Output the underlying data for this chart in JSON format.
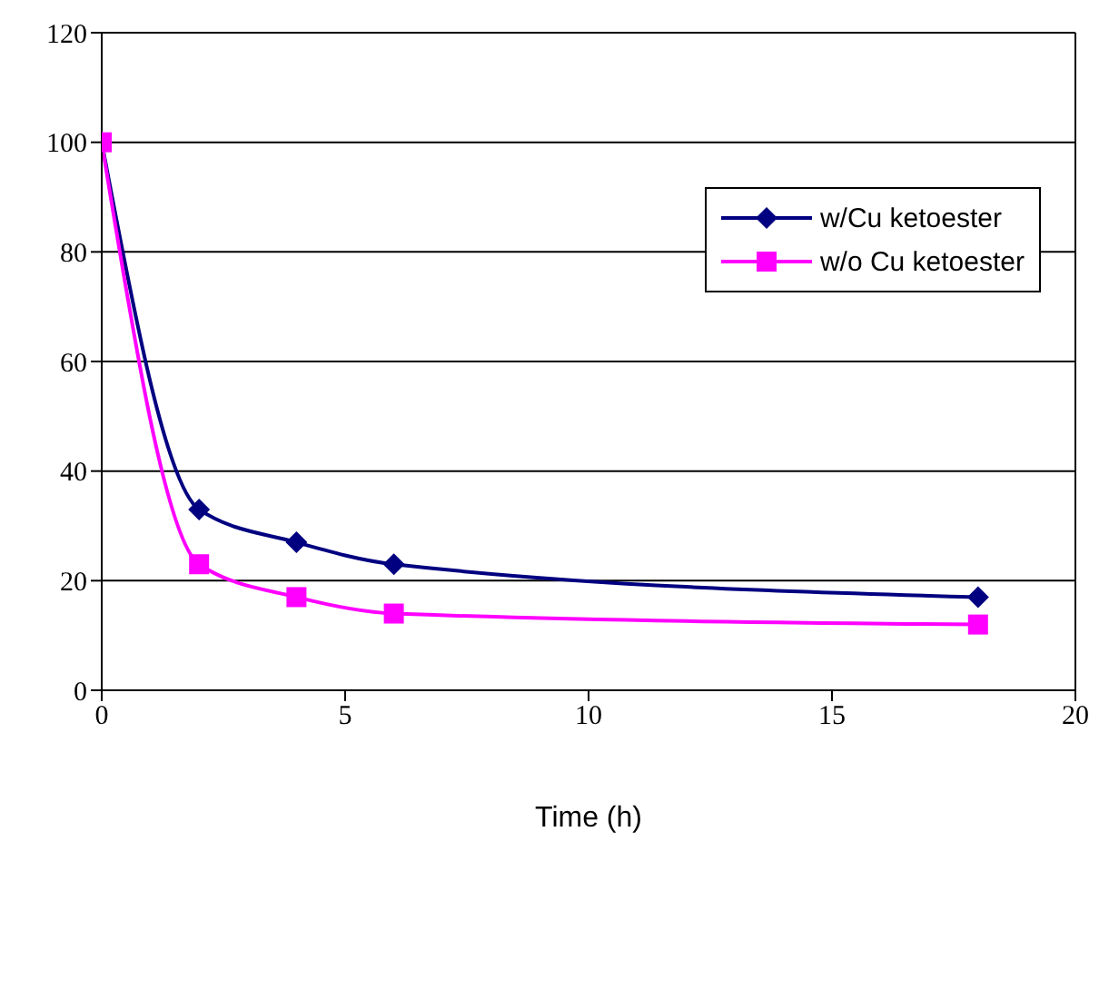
{
  "chart_data": {
    "type": "line",
    "xlabel": "Time (h)",
    "x": [
      0,
      2,
      4,
      6,
      18
    ],
    "series": [
      {
        "name": "w/Cu ketoester",
        "color": "#000080",
        "marker": "diamond",
        "values": [
          100,
          33,
          27,
          23,
          17
        ]
      },
      {
        "name": "w/o Cu ketoester",
        "color": "#ff00ff",
        "marker": "square",
        "values": [
          100,
          23,
          17,
          14,
          12
        ]
      }
    ],
    "xlim": [
      0,
      20
    ],
    "xticks": [
      0,
      5,
      10,
      15,
      20
    ],
    "ylim": [
      0,
      120
    ],
    "yticks": [
      0,
      20,
      40,
      60,
      80,
      100,
      120
    ],
    "grid": "y",
    "legend": "top right",
    "line_style": "solid"
  }
}
